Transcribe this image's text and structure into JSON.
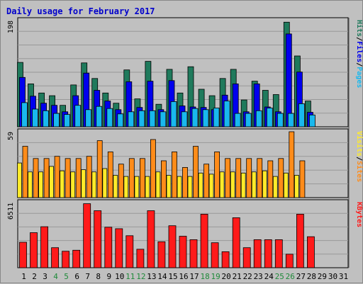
{
  "colors": {
    "background": "#c0c0c0",
    "plot_background": "#c0c0c0",
    "title": "#0000cc",
    "hits": "#1f7a5c",
    "files": "#0000ee",
    "pages": "#19b8ee",
    "visits": "#ff8c1a",
    "sites": "#ffeb2a",
    "kbytes": "#ff1a1a",
    "grid": "#999999",
    "weekend_label": "#1f8a3a",
    "weekday_label": "#000000"
  },
  "chart_data": [
    {
      "type": "bar",
      "title": "Daily usage for February 2017",
      "ymax_label": "198",
      "ylim": [
        0,
        198
      ],
      "categories": [
        "1",
        "2",
        "3",
        "4",
        "5",
        "6",
        "7",
        "8",
        "9",
        "10",
        "11",
        "12",
        "13",
        "14",
        "15",
        "16",
        "17",
        "18",
        "19",
        "20",
        "21",
        "22",
        "23",
        "24",
        "25",
        "26",
        "27",
        "28",
        "29",
        "30",
        "31"
      ],
      "weekend_days": [
        "4",
        "5",
        "11",
        "12",
        "18",
        "19",
        "25",
        "26"
      ],
      "legend": [
        {
          "label": "Hits",
          "color_key": "hits"
        },
        {
          "label": "/",
          "color_key": "weekday_label"
        },
        {
          "label": "Files",
          "color_key": "files"
        },
        {
          "label": "/",
          "color_key": "weekday_label"
        },
        {
          "label": "Pages",
          "color_key": "pages"
        }
      ],
      "series": [
        {
          "name": "Hits",
          "color_key": "hits",
          "values": [
            120,
            80,
            63,
            58,
            40,
            78,
            119,
            90,
            63,
            44,
            106,
            52,
            122,
            42,
            107,
            63,
            112,
            70,
            58,
            90,
            107,
            50,
            85,
            68,
            60,
            195,
            132,
            48,
            null,
            null,
            null
          ]
        },
        {
          "name": "Files",
          "color_key": "files",
          "values": [
            92,
            57,
            44,
            40,
            28,
            58,
            100,
            68,
            48,
            32,
            84,
            36,
            85,
            32,
            86,
            39,
            37,
            36,
            32,
            59,
            80,
            28,
            80,
            37,
            28,
            173,
            102,
            27,
            null,
            null,
            null
          ]
        },
        {
          "name": "Pages",
          "color_key": "pages",
          "values": [
            45,
            33,
            30,
            25,
            23,
            40,
            32,
            38,
            34,
            24,
            28,
            30,
            30,
            28,
            47,
            28,
            34,
            32,
            35,
            48,
            25,
            25,
            30,
            35,
            25,
            25,
            43,
            22,
            null,
            null,
            null
          ]
        }
      ]
    },
    {
      "type": "bar",
      "ymax_label": "59",
      "ylim": [
        0,
        59
      ],
      "categories": [
        "1",
        "2",
        "3",
        "4",
        "5",
        "6",
        "7",
        "8",
        "9",
        "10",
        "11",
        "12",
        "13",
        "14",
        "15",
        "16",
        "17",
        "18",
        "19",
        "20",
        "21",
        "22",
        "23",
        "24",
        "25",
        "26",
        "27",
        "28",
        "29",
        "30",
        "31"
      ],
      "legend": [
        {
          "label": "Visits",
          "color_key": "sites"
        },
        {
          "label": "/",
          "color_key": "weekday_label"
        },
        {
          "label": "Sites",
          "color_key": "visits"
        }
      ],
      "series": [
        {
          "name": "Visits",
          "color_key": "visits",
          "values": [
            46,
            35,
            35,
            37,
            35,
            35,
            37,
            51,
            41,
            30,
            35,
            35,
            52,
            33,
            41,
            27,
            46,
            30,
            41,
            35,
            35,
            35,
            35,
            33,
            35,
            59,
            33,
            null,
            null,
            null,
            null
          ]
        },
        {
          "name": "Sites",
          "color_key": "sites",
          "values": [
            31,
            23,
            23,
            28,
            24,
            23,
            25,
            23,
            26,
            20,
            19,
            19,
            19,
            23,
            20,
            19,
            19,
            22,
            21,
            23,
            23,
            22,
            23,
            24,
            19,
            22,
            20,
            null,
            null,
            null,
            null
          ]
        }
      ]
    },
    {
      "type": "bar",
      "ymax_label": "6511",
      "ylim": [
        0,
        6511
      ],
      "categories": [
        "1",
        "2",
        "3",
        "4",
        "5",
        "6",
        "7",
        "8",
        "9",
        "10",
        "11",
        "12",
        "13",
        "14",
        "15",
        "16",
        "17",
        "18",
        "19",
        "20",
        "21",
        "22",
        "23",
        "24",
        "25",
        "26",
        "27",
        "28",
        "29",
        "30",
        "31"
      ],
      "legend": [
        {
          "label": "KBytes",
          "color_key": "kbytes"
        }
      ],
      "series": [
        {
          "name": "KBytes",
          "color_key": "kbytes",
          "values": [
            2550,
            3500,
            4100,
            2000,
            1650,
            1750,
            6400,
            5700,
            4050,
            3900,
            3200,
            1850,
            5700,
            2600,
            4200,
            3150,
            2800,
            5350,
            2500,
            1600,
            5000,
            2000,
            2800,
            2800,
            2800,
            1350,
            5350,
            3100,
            null,
            null,
            null
          ]
        }
      ]
    }
  ]
}
